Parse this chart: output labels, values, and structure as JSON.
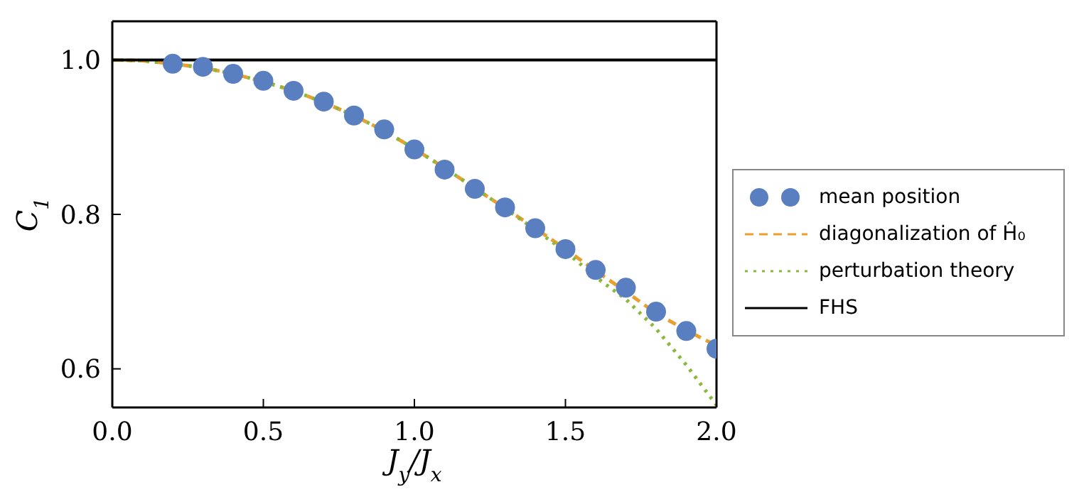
{
  "chart_data": {
    "type": "line",
    "xlabel": "J$_{y}$/J$_{x}$",
    "ylabel": "C$_{1}$",
    "xlim": [
      0,
      2
    ],
    "ylim": [
      0.55,
      1.05
    ],
    "xticks": [
      {
        "value": 0,
        "label": "0.0"
      },
      {
        "value": 0.5,
        "label": "0.5"
      },
      {
        "value": 1,
        "label": "1.0"
      },
      {
        "value": 1.5,
        "label": "1.5"
      },
      {
        "value": 2,
        "label": "2.0"
      }
    ],
    "yticks": [
      {
        "value": 0.6,
        "label": "0.6"
      },
      {
        "value": 0.8,
        "label": "0.8"
      },
      {
        "value": 1,
        "label": "1.0"
      }
    ],
    "grid": false,
    "legend": "right",
    "series": [
      {
        "name": "mean position",
        "type": "scatter",
        "marker": "circle",
        "color": "#5a7fc0",
        "x": [
          0.2,
          0.3,
          0.4,
          0.5,
          0.6,
          0.7,
          0.8,
          0.9,
          1.0,
          1.1,
          1.2,
          1.3,
          1.4,
          1.5,
          1.6,
          1.7,
          1.8,
          1.9,
          2.0
        ],
        "values": [
          0.995,
          0.991,
          0.982,
          0.973,
          0.96,
          0.946,
          0.928,
          0.91,
          0.884,
          0.858,
          0.833,
          0.809,
          0.782,
          0.755,
          0.728,
          0.705,
          0.674,
          0.649,
          0.626
        ]
      },
      {
        "name": "diagonalization of Ĥ₀",
        "line_style": "dashed",
        "color": "#e8a030",
        "x": [
          0,
          0.1,
          0.2,
          0.3,
          0.4,
          0.5,
          0.6,
          0.7,
          0.8,
          0.9,
          1.0,
          1.1,
          1.2,
          1.3,
          1.4,
          1.5,
          1.6,
          1.7,
          1.8,
          1.9,
          2.0
        ],
        "values": [
          1.0,
          0.999,
          0.995,
          0.99,
          0.982,
          0.972,
          0.96,
          0.945,
          0.928,
          0.908,
          0.885,
          0.86,
          0.834,
          0.808,
          0.782,
          0.755,
          0.727,
          0.7,
          0.672,
          0.65,
          0.63
        ]
      },
      {
        "name": "perturbation theory",
        "line_style": "dotted",
        "color": "#8ab83a",
        "x": [
          0,
          0.1,
          0.2,
          0.3,
          0.4,
          0.5,
          0.6,
          0.7,
          0.8,
          0.9,
          1.0,
          1.1,
          1.2,
          1.3,
          1.4,
          1.5,
          1.6,
          1.7,
          1.8,
          1.9,
          2.0
        ],
        "values": [
          1.0,
          0.999,
          0.995,
          0.99,
          0.982,
          0.972,
          0.96,
          0.945,
          0.928,
          0.908,
          0.885,
          0.86,
          0.834,
          0.808,
          0.78,
          0.752,
          0.719,
          0.69,
          0.652,
          0.605,
          0.553
        ]
      },
      {
        "name": "FHS",
        "line_style": "solid",
        "color": "#000000",
        "x": [
          0,
          2
        ],
        "values": [
          1,
          1
        ]
      }
    ]
  }
}
